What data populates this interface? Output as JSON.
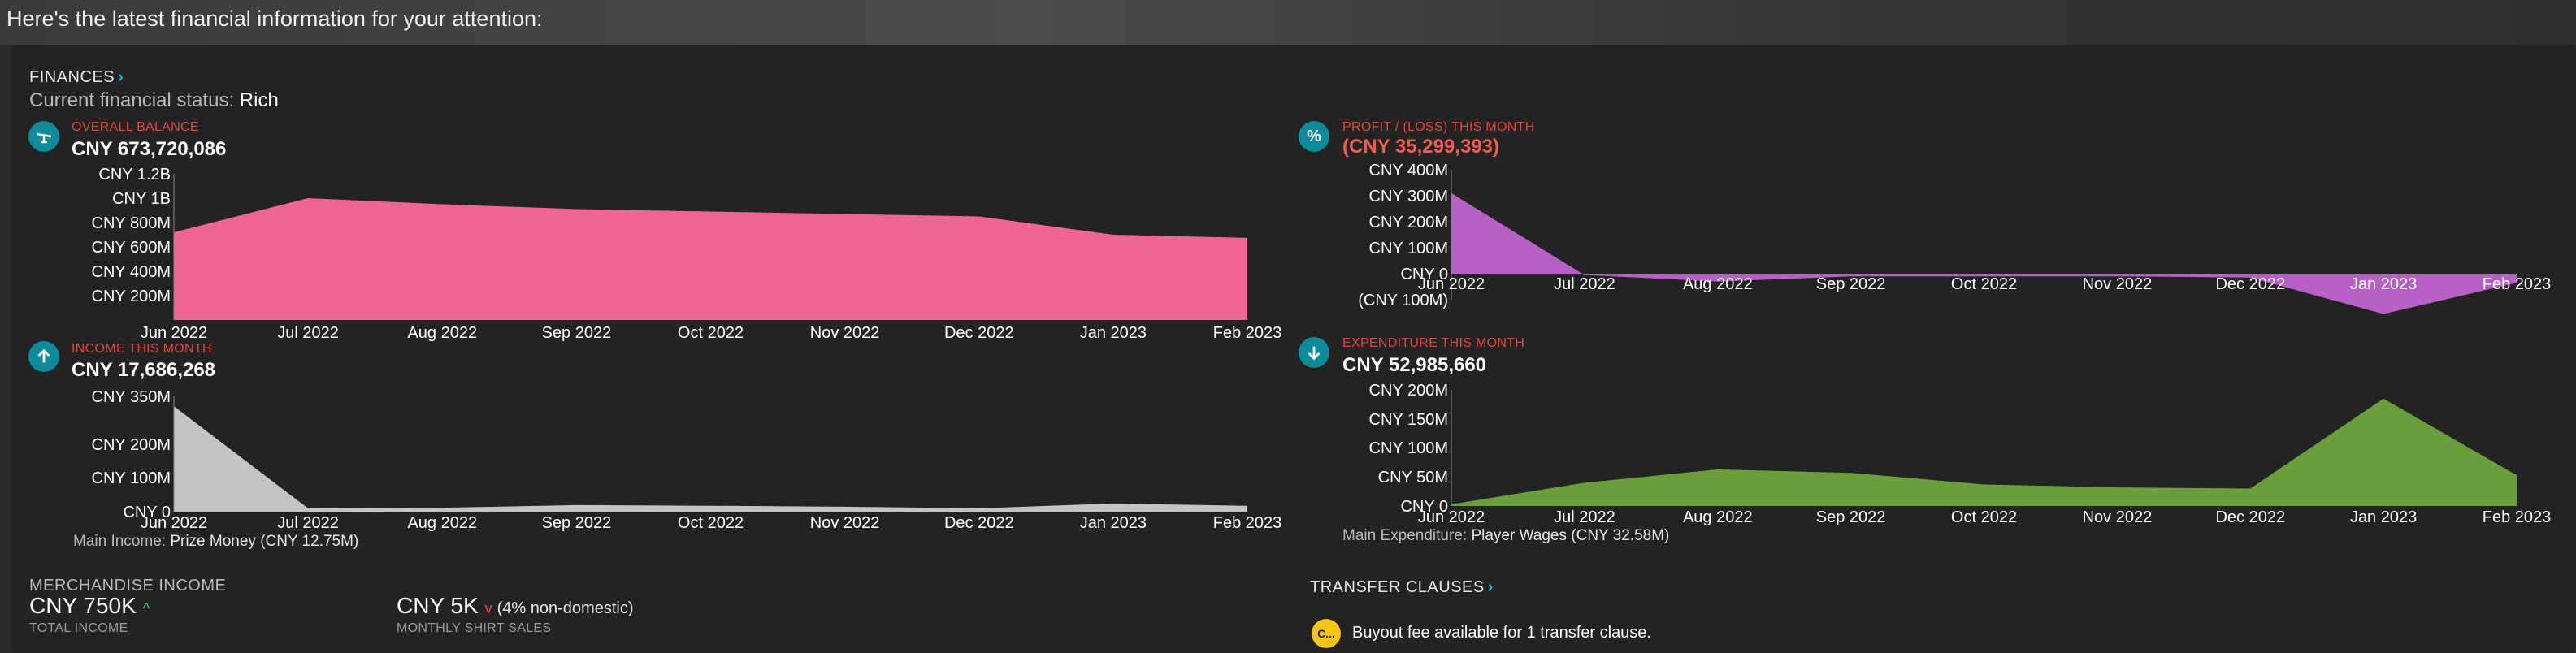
{
  "intro": "Here's the latest financial information for your attention:",
  "finances": {
    "title": "FINANCES",
    "status_label": "Current financial status:",
    "status_value": "Rich"
  },
  "months": [
    "Jun 2022",
    "Jul 2022",
    "Aug 2022",
    "Sep 2022",
    "Oct 2022",
    "Nov 2022",
    "Dec 2022",
    "Jan 2023",
    "Feb 2023"
  ],
  "balance": {
    "label": "OVERALL BALANCE",
    "value": "CNY 673,720,086",
    "icon": "scale-icon",
    "color": "#ef6696",
    "ticks": [
      "CNY 1.2B",
      "CNY 1B",
      "CNY 800M",
      "CNY 600M",
      "CNY 400M",
      "CNY 200M"
    ]
  },
  "profit": {
    "label": "PROFIT / (LOSS) THIS MONTH",
    "value": "(CNY 35,299,393)",
    "icon": "percent-icon",
    "color": "#b760c6",
    "ticks": [
      "CNY 400M",
      "CNY 300M",
      "CNY 200M",
      "CNY 100M",
      "CNY 0",
      "(CNY 100M)"
    ]
  },
  "income": {
    "label": "INCOME THIS MONTH",
    "value": "CNY 17,686,268",
    "icon": "arrow-up-icon",
    "color": "#c4c4c4",
    "ticks": [
      "CNY 350M",
      "CNY 200M",
      "CNY 100M",
      "CNY 0"
    ],
    "note_label": "Main Income:",
    "note_value": "Prize Money (CNY 12.75M)"
  },
  "expenditure": {
    "label": "EXPENDITURE THIS MONTH",
    "value": "CNY 52,985,660",
    "icon": "arrow-down-icon",
    "color": "#6a9e3a",
    "ticks": [
      "CNY 200M",
      "CNY 150M",
      "CNY 100M",
      "CNY 50M",
      "CNY 0"
    ],
    "note_label": "Main Expenditure:",
    "note_value": "Player Wages (CNY 32.58M)"
  },
  "merch": {
    "title": "MERCHANDISE INCOME",
    "total_value": "CNY 750K",
    "total_caption": "TOTAL INCOME",
    "shirt_value": "CNY 5K",
    "shirt_extra": "(4% non-domestic)",
    "shirt_caption": "MONTHLY SHIRT SALES"
  },
  "transfer": {
    "title": "TRANSFER CLAUSES",
    "icon_text": "C...",
    "text": "Buyout fee available for 1 transfer clause."
  },
  "chart_data": [
    {
      "type": "area",
      "title": "OVERALL BALANCE",
      "categories": [
        "Jun 2022",
        "Jul 2022",
        "Aug 2022",
        "Sep 2022",
        "Oct 2022",
        "Nov 2022",
        "Dec 2022",
        "Jan 2023",
        "Feb 2023"
      ],
      "values": [
        720000000,
        1000000000,
        950000000,
        910000000,
        890000000,
        870000000,
        850000000,
        700000000,
        674000000
      ],
      "ylim": [
        0,
        1200000000
      ]
    },
    {
      "type": "area",
      "title": "PROFIT / (LOSS) THIS MONTH",
      "categories": [
        "Jun 2022",
        "Jul 2022",
        "Aug 2022",
        "Sep 2022",
        "Oct 2022",
        "Nov 2022",
        "Dec 2022",
        "Jan 2023",
        "Feb 2023"
      ],
      "values": [
        310000000,
        -5000000,
        -30000000,
        -10000000,
        -10000000,
        -10000000,
        -15000000,
        -155000000,
        -35000000
      ],
      "ylim": [
        -100000000,
        400000000
      ]
    },
    {
      "type": "area",
      "title": "INCOME THIS MONTH",
      "categories": [
        "Jun 2022",
        "Jul 2022",
        "Aug 2022",
        "Sep 2022",
        "Oct 2022",
        "Nov 2022",
        "Dec 2022",
        "Jan 2023",
        "Feb 2023"
      ],
      "values": [
        320000000,
        10000000,
        12000000,
        20000000,
        18000000,
        15000000,
        10000000,
        25000000,
        17700000
      ],
      "ylim": [
        0,
        350000000
      ]
    },
    {
      "type": "area",
      "title": "EXPENDITURE THIS MONTH",
      "categories": [
        "Jun 2022",
        "Jul 2022",
        "Aug 2022",
        "Sep 2022",
        "Oct 2022",
        "Nov 2022",
        "Dec 2022",
        "Jan 2023",
        "Feb 2023"
      ],
      "values": [
        3000000,
        40000000,
        63000000,
        57000000,
        37000000,
        32000000,
        30000000,
        185000000,
        53000000
      ],
      "ylim": [
        0,
        200000000
      ]
    }
  ]
}
